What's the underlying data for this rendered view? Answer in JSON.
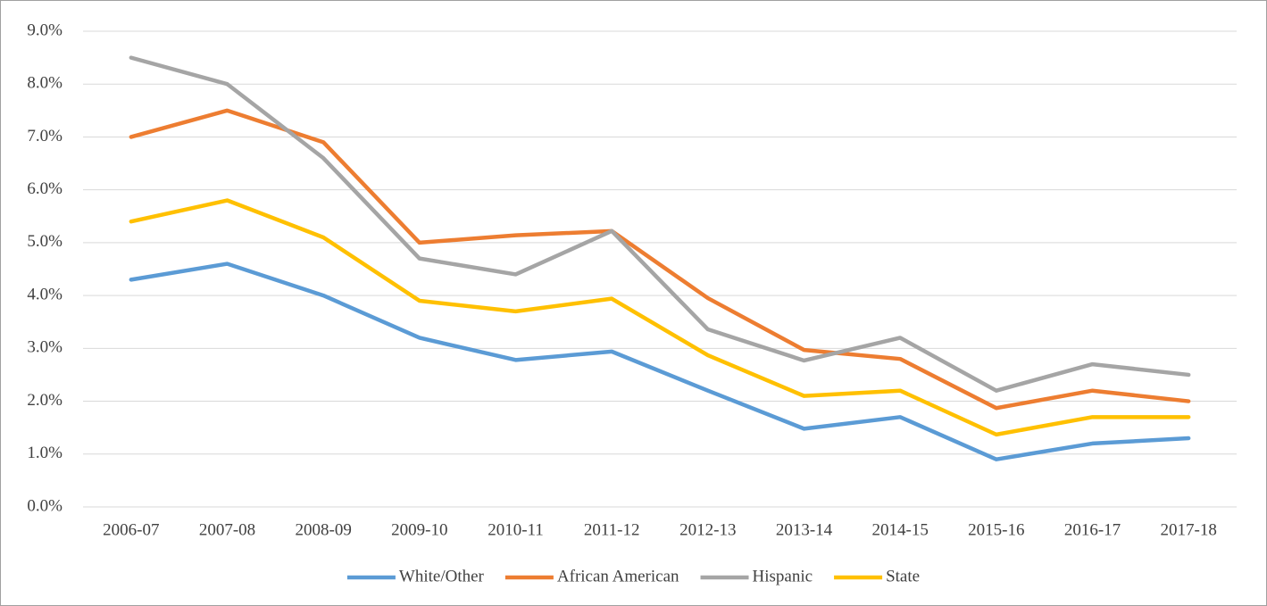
{
  "chart_data": {
    "type": "line",
    "categories": [
      "2006-07",
      "2007-08",
      "2008-09",
      "2009-10",
      "2010-11",
      "2011-12",
      "2012-13",
      "2013-14",
      "2014-15",
      "2015-16",
      "2016-17",
      "2017-18"
    ],
    "series": [
      {
        "name": "White/Other",
        "color": "#5b9bd5",
        "values": [
          4.3,
          4.6,
          4.0,
          3.2,
          2.78,
          2.94,
          2.2,
          1.48,
          1.7,
          0.9,
          1.2,
          1.3
        ]
      },
      {
        "name": "African American",
        "color": "#ed7d31",
        "values": [
          7.0,
          7.5,
          6.9,
          5.0,
          5.14,
          5.22,
          3.95,
          2.97,
          2.8,
          1.87,
          2.2,
          2.0
        ]
      },
      {
        "name": "Hispanic",
        "color": "#a5a5a5",
        "values": [
          8.5,
          8.0,
          6.6,
          4.7,
          4.4,
          5.22,
          3.36,
          2.77,
          3.2,
          2.2,
          2.7,
          2.5
        ]
      },
      {
        "name": "State",
        "color": "#ffc000",
        "values": [
          5.4,
          5.8,
          5.1,
          3.9,
          3.7,
          3.94,
          2.87,
          2.1,
          2.2,
          1.37,
          1.7,
          1.7
        ]
      }
    ],
    "ylim": [
      0,
      9
    ],
    "yticks": [
      {
        "value": 0,
        "label": "0.0%"
      },
      {
        "value": 1,
        "label": "1.0%"
      },
      {
        "value": 2,
        "label": "2.0%"
      },
      {
        "value": 3,
        "label": "3.0%"
      },
      {
        "value": 4,
        "label": "4.0%"
      },
      {
        "value": 5,
        "label": "5.0%"
      },
      {
        "value": 6,
        "label": "6.0%"
      },
      {
        "value": 7,
        "label": "7.0%"
      },
      {
        "value": 8,
        "label": "8.0%"
      },
      {
        "value": 9,
        "label": "9.0%"
      }
    ],
    "grid": true,
    "legend": "bottom"
  }
}
